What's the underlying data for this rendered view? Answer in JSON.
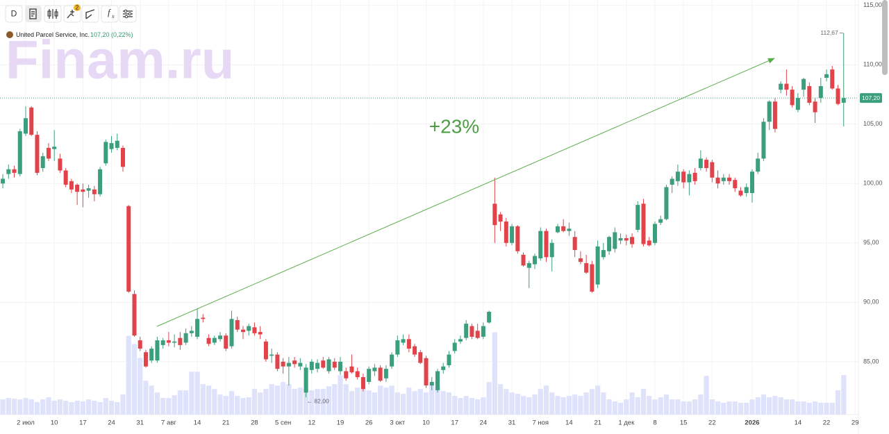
{
  "chart_data": {
    "type": "candlestick",
    "title": "United Parcel Service, Inc.",
    "subtitle": "107,20 (0,22%)",
    "watermark": "Finam.ru",
    "annotation": "+23%",
    "high_label": "112,67",
    "low_label": "← 82,00",
    "last_price_label": "107,20",
    "toolbar": {
      "interval": "D",
      "badge": "2",
      "function": "f",
      "function_sub": "x"
    },
    "categories": [
      null,
      null,
      null,
      null,
      "2 июл",
      null,
      null,
      null,
      null,
      "10",
      null,
      null,
      null,
      null,
      "17",
      null,
      null,
      null,
      null,
      "24",
      null,
      null,
      null,
      null,
      "31",
      null,
      null,
      null,
      null,
      "7 авг",
      null,
      null,
      null,
      null,
      "14",
      null,
      null,
      null,
      null,
      "21",
      null,
      null,
      null,
      null,
      "28",
      null,
      null,
      null,
      null,
      "5 сен",
      null,
      null,
      null,
      null,
      "12",
      null,
      null,
      null,
      null,
      "19",
      null,
      null,
      null,
      null,
      "26",
      null,
      null,
      null,
      null,
      "3 окт",
      null,
      null,
      null,
      null,
      "10",
      null,
      null,
      null,
      null,
      "17",
      null,
      null,
      null,
      null,
      "24",
      null,
      null,
      null,
      null,
      "31",
      null,
      null,
      null,
      null,
      "7 ноя",
      null,
      null,
      null,
      null,
      "14",
      null,
      null,
      null,
      null,
      "21",
      null,
      null,
      null,
      null,
      "1 дек",
      null,
      null,
      null,
      null,
      "8",
      null,
      null,
      null,
      null,
      "15",
      null,
      null,
      null,
      null,
      "22",
      null,
      null,
      null,
      null,
      null,
      null,
      "2026",
      null,
      null,
      null,
      null,
      null,
      null,
      null,
      "14",
      null,
      null,
      null,
      null,
      "22",
      null,
      null,
      null,
      null,
      "29"
    ],
    "open": [
      100.0,
      100.8,
      101.2,
      100.8,
      104.2,
      106.4,
      104.1,
      101.3,
      103.0,
      102.9,
      102.1,
      101.1,
      100.2,
      99.9,
      99.5,
      99.4,
      99.5,
      99.1,
      101.7,
      102.9,
      103.0,
      103.0,
      98.1,
      90.7,
      86.8,
      85.8,
      85.1,
      85.1,
      86.4,
      86.8,
      86.6,
      87.0,
      86.6,
      87.4,
      87.1,
      88.7,
      87.0,
      86.6,
      86.9,
      87.2,
      86.3,
      88.5,
      87.7,
      87.6,
      87.9,
      87.5,
      86.7,
      85.5,
      85.6,
      85.0,
      84.6,
      85.1,
      84.6,
      82.4,
      84.3,
      84.4,
      85.1,
      84.2,
      85.0,
      84.2,
      84.2,
      84.6,
      84.2,
      83.7,
      83.3,
      84.2,
      84.5,
      83.6,
      84.6,
      85.6,
      86.6,
      86.9,
      86.3,
      85.8,
      85.3,
      83.0,
      82.6,
      84.3,
      84.7,
      85.9,
      86.7,
      87.0,
      88.0,
      87.6,
      87.1,
      88.3,
      98.3,
      97.4,
      96.8,
      95.0,
      96.4,
      94.0,
      92.9,
      93.2,
      93.7,
      96.0,
      93.8,
      95.9,
      96.4,
      96.0,
      95.5,
      93.7,
      93.3,
      93.2,
      91.5,
      93.8,
      94.3,
      94.5,
      95.2,
      95.4,
      95.5,
      96.1,
      98.3,
      95.2,
      95.0,
      96.7,
      97.0,
      99.9,
      100.2,
      101.0,
      100.1,
      100.9,
      101.3,
      102.0,
      101.8,
      100.5,
      100.2,
      100.5,
      100.3,
      99.4,
      99.2,
      99.2,
      101.0,
      102.1,
      105.2,
      106.9,
      107.9,
      108.4,
      107.9,
      106.2,
      107.9,
      108.2,
      106.9,
      107.2,
      108.9,
      109.6,
      108.0,
      106.8,
      null,
      null
    ],
    "high": [
      100.8,
      101.6,
      101.5,
      104.6,
      106.5,
      106.5,
      104.4,
      102.6,
      103.4,
      104.5,
      102.5,
      101.3,
      100.4,
      100.0,
      100.0,
      99.9,
      99.8,
      101.4,
      103.7,
      104.0,
      104.2,
      103.2,
      98.2,
      91.0,
      87.1,
      86.0,
      86.3,
      87.1,
      87.0,
      87.5,
      87.3,
      87.5,
      87.8,
      88.0,
      89.5,
      89.0,
      87.3,
      87.2,
      87.5,
      87.4,
      89.3,
      88.8,
      88.0,
      88.2,
      88.3,
      88.0,
      86.9,
      86.1,
      85.8,
      85.3,
      85.4,
      85.4,
      85.3,
      84.8,
      85.2,
      85.2,
      85.4,
      85.4,
      85.3,
      85.4,
      84.5,
      85.6,
      84.5,
      84.0,
      84.6,
      84.8,
      84.7,
      84.7,
      85.8,
      87.2,
      87.3,
      87.3,
      86.5,
      86.0,
      85.5,
      83.7,
      84.4,
      84.9,
      85.9,
      86.9,
      87.2,
      88.5,
      88.2,
      88.2,
      88.3,
      89.3,
      100.5,
      97.6,
      97.1,
      96.6,
      96.5,
      94.2,
      93.5,
      94.1,
      96.3,
      96.2,
      95.3,
      96.6,
      97.0,
      96.7,
      96.0,
      94.3,
      94.0,
      93.5,
      95.2,
      95.0,
      95.6,
      96.3,
      95.8,
      95.7,
      95.8,
      98.5,
      98.7,
      95.5,
      96.8,
      97.3,
      99.9,
      100.6,
      101.6,
      101.2,
      101.1,
      101.3,
      102.8,
      102.2,
      102.0,
      101.1,
      100.8,
      100.8,
      100.5,
      99.7,
      100.0,
      101.2,
      102.6,
      105.5,
      107.0,
      107.2,
      108.6,
      109.6,
      108.2,
      107.6,
      108.9,
      108.5,
      107.2,
      108.9,
      109.6,
      109.9,
      108.3,
      112.67,
      null,
      null
    ],
    "low": [
      99.6,
      100.4,
      100.5,
      100.6,
      104.0,
      104.0,
      100.7,
      101.0,
      101.9,
      101.9,
      100.9,
      99.7,
      99.2,
      98.2,
      98.0,
      98.8,
      98.5,
      98.9,
      101.5,
      102.6,
      102.8,
      101.0,
      90.8,
      87.1,
      85.9,
      84.5,
      84.9,
      84.9,
      86.1,
      86.3,
      86.2,
      86.0,
      86.4,
      87.1,
      86.9,
      88.3,
      86.3,
      86.4,
      86.7,
      85.9,
      86.1,
      87.5,
      86.9,
      87.2,
      87.2,
      86.9,
      85.0,
      84.9,
      84.2,
      84.0,
      83.0,
      84.5,
      84.3,
      82.0,
      84.0,
      84.1,
      84.4,
      84.0,
      84.3,
      83.9,
      83.4,
      84.0,
      83.5,
      82.5,
      83.1,
      83.8,
      83.3,
      83.3,
      84.4,
      85.4,
      86.4,
      85.8,
      85.4,
      84.8,
      82.8,
      82.6,
      82.4,
      84.0,
      84.5,
      85.7,
      86.5,
      86.8,
      86.9,
      86.9,
      86.9,
      88.2,
      95.0,
      96.0,
      94.7,
      94.8,
      94.1,
      93.0,
      91.2,
      92.8,
      93.5,
      93.4,
      92.6,
      95.8,
      95.9,
      95.6,
      93.8,
      93.2,
      92.4,
      90.8,
      91.2,
      93.6,
      94.0,
      94.2,
      94.9,
      94.8,
      94.6,
      95.9,
      94.7,
      94.7,
      94.8,
      96.5,
      96.9,
      99.2,
      99.8,
      99.6,
      99.0,
      99.9,
      101.1,
      101.0,
      100.1,
      99.6,
      99.9,
      99.9,
      99.3,
      98.9,
      98.9,
      98.4,
      100.8,
      101.9,
      104.5,
      104.3,
      107.6,
      107.4,
      106.4,
      106.0,
      107.3,
      106.6,
      105.1,
      106.8,
      108.6,
      107.9,
      106.6,
      104.8,
      null,
      null
    ],
    "close": [
      100.4,
      101.2,
      100.9,
      104.4,
      105.5,
      104.1,
      100.9,
      102.3,
      102.1,
      103.1,
      101.1,
      99.9,
      99.5,
      99.3,
      99.3,
      99.6,
      99.1,
      101.2,
      103.5,
      103.4,
      103.6,
      101.4,
      90.9,
      87.2,
      86.1,
      84.6,
      86.1,
      86.8,
      86.8,
      86.6,
      86.7,
      86.4,
      87.4,
      87.6,
      88.6,
      88.6,
      86.5,
      87.0,
      87.2,
      86.1,
      88.6,
      87.7,
      87.5,
      88.0,
      87.4,
      87.3,
      85.2,
      85.6,
      84.4,
      84.6,
      84.9,
      84.8,
      84.9,
      84.5,
      85.0,
      84.9,
      84.5,
      85.2,
      84.5,
      85.0,
      83.6,
      84.1,
      83.7,
      82.7,
      84.4,
      84.5,
      83.4,
      84.4,
      85.6,
      86.8,
      86.9,
      86.1,
      85.6,
      84.9,
      83.0,
      83.3,
      84.2,
      84.6,
      85.6,
      86.6,
      86.9,
      88.2,
      87.1,
      87.0,
      88.0,
      89.2,
      96.5,
      96.8,
      95.0,
      96.4,
      94.3,
      93.1,
      93.3,
      93.9,
      96.0,
      93.8,
      95.0,
      96.4,
      96.0,
      96.2,
      94.4,
      93.4,
      92.5,
      90.9,
      94.7,
      94.4,
      95.5,
      95.9,
      95.4,
      95.2,
      94.9,
      98.2,
      94.9,
      94.8,
      96.6,
      97.0,
      99.7,
      100.4,
      101.0,
      100.1,
      100.8,
      100.2,
      102.1,
      101.3,
      100.5,
      100.0,
      100.5,
      100.2,
      99.6,
      99.0,
      99.7,
      101.0,
      102.1,
      105.2,
      106.9,
      104.6,
      108.4,
      107.9,
      106.6,
      107.2,
      108.8,
      106.8,
      106.0,
      108.2,
      109.2,
      108.0,
      106.7,
      107.2,
      null,
      null
    ],
    "volume": [
      22,
      24,
      23,
      22,
      24,
      22,
      18,
      22,
      25,
      20,
      22,
      20,
      18,
      20,
      19,
      22,
      20,
      18,
      24,
      20,
      18,
      29,
      114,
      102,
      82,
      49,
      42,
      32,
      24,
      24,
      28,
      35,
      35,
      62,
      62,
      44,
      42,
      37,
      29,
      27,
      34,
      27,
      24,
      25,
      37,
      32,
      37,
      44,
      42,
      47,
      44,
      37,
      39,
      37,
      35,
      37,
      37,
      41,
      44,
      57,
      44,
      34,
      39,
      37,
      35,
      32,
      42,
      39,
      42,
      32,
      30,
      39,
      34,
      37,
      32,
      44,
      39,
      34,
      32,
      27,
      24,
      27,
      24,
      22,
      25,
      47,
      119,
      44,
      37,
      32,
      30,
      27,
      25,
      29,
      37,
      42,
      32,
      27,
      25,
      27,
      29,
      27,
      32,
      37,
      42,
      32,
      22,
      19,
      17,
      22,
      32,
      25,
      37,
      27,
      22,
      25,
      29,
      22,
      22,
      19,
      19,
      22,
      29,
      56,
      22,
      19,
      17,
      19,
      19,
      17,
      17,
      22,
      25,
      29,
      25,
      27,
      25,
      22,
      22,
      19,
      19,
      17,
      19,
      17,
      17,
      17,
      35,
      57,
      null,
      null
    ],
    "up_color": "#3b9e7c",
    "down_color": "#e2434a",
    "volume_color": "#dfe2fb",
    "ylim": [
      80.55,
      115.45
    ],
    "volume_ylim": [
      0,
      600
    ],
    "yticks": [
      {
        "value": 85,
        "label": "85,00"
      },
      {
        "value": 90,
        "label": "90,00"
      },
      {
        "value": 95,
        "label": "95,00"
      },
      {
        "value": 100,
        "label": "100,00"
      },
      {
        "value": 105,
        "label": "105,00"
      },
      {
        "value": 110,
        "label": "110,00"
      },
      {
        "value": 115,
        "label": "115,00"
      }
    ],
    "grid": true
  }
}
